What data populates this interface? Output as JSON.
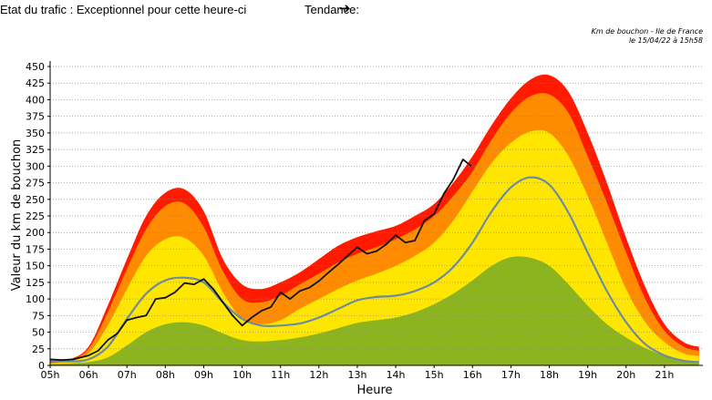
{
  "header": {
    "status_text": "Etat du trafic : Exceptionnel pour cette heure-ci",
    "trend_label": "Tendance:",
    "trend_arrow": "➔"
  },
  "caption": {
    "line1": "Km de bouchon - Ile de France",
    "line2": "le 15/04/22 à 15h58"
  },
  "colors": {
    "green": "#8cb41e",
    "yellow": "#ffe600",
    "orange": "#ff8c00",
    "red": "#ff1a00",
    "average_line": "#6e8ca0",
    "today_line": "#111111",
    "grid": "#888888"
  },
  "chart_data": {
    "type": "area",
    "xlabel": "Heure",
    "ylabel": "Valeur du  km de bouchon",
    "ylim": [
      0,
      450
    ],
    "xlim": [
      5,
      22
    ],
    "yticks": [
      0,
      25,
      50,
      75,
      100,
      125,
      150,
      175,
      200,
      225,
      250,
      275,
      300,
      325,
      350,
      375,
      400,
      425,
      450
    ],
    "xticks": [
      "05h",
      "06h",
      "07h",
      "08h",
      "09h",
      "10h",
      "11h",
      "12h",
      "13h",
      "14h",
      "15h",
      "16h",
      "17h",
      "18h",
      "19h",
      "20h",
      "21h"
    ],
    "grid": true,
    "x": [
      5,
      5.5,
      6,
      6.5,
      7,
      7.5,
      8,
      8.5,
      9,
      9.5,
      10,
      10.5,
      11,
      11.5,
      12,
      12.5,
      13,
      13.5,
      14,
      14.5,
      15,
      15.5,
      16,
      16.5,
      17,
      17.5,
      18,
      18.5,
      19,
      19.5,
      20,
      20.5,
      21,
      21.5,
      21.9
    ],
    "bands": [
      {
        "name": "green",
        "values": [
          2,
          3,
          5,
          12,
          30,
          50,
          62,
          65,
          60,
          48,
          38,
          36,
          38,
          42,
          48,
          56,
          64,
          68,
          72,
          80,
          92,
          108,
          128,
          150,
          163,
          162,
          150,
          122,
          90,
          62,
          42,
          26,
          15,
          8,
          5
        ]
      },
      {
        "name": "yellow",
        "values": [
          3,
          6,
          18,
          60,
          115,
          165,
          190,
          192,
          165,
          110,
          70,
          62,
          68,
          85,
          100,
          115,
          128,
          138,
          150,
          165,
          185,
          218,
          262,
          305,
          335,
          352,
          350,
          315,
          255,
          185,
          115,
          65,
          35,
          18,
          14
        ]
      },
      {
        "name": "orange",
        "values": [
          4,
          8,
          25,
          80,
          145,
          205,
          240,
          244,
          208,
          142,
          100,
          95,
          105,
          122,
          138,
          155,
          168,
          178,
          190,
          205,
          225,
          255,
          292,
          340,
          380,
          405,
          408,
          380,
          315,
          245,
          170,
          100,
          52,
          28,
          22
        ]
      },
      {
        "name": "red",
        "values": [
          5,
          9,
          28,
          90,
          160,
          225,
          260,
          265,
          232,
          160,
          122,
          115,
          125,
          140,
          160,
          180,
          193,
          202,
          210,
          225,
          243,
          275,
          315,
          362,
          402,
          430,
          437,
          412,
          350,
          275,
          192,
          118,
          62,
          35,
          28
        ]
      }
    ],
    "series": [
      {
        "name": "average",
        "x": [
          5,
          5.5,
          6,
          6.5,
          7,
          7.5,
          8,
          8.5,
          9,
          9.5,
          10,
          10.5,
          11,
          11.5,
          12,
          12.5,
          13,
          13.5,
          14,
          14.5,
          15,
          15.5,
          16,
          16.5,
          17,
          17.5,
          18,
          18.5,
          19,
          19.5,
          20,
          20.5,
          21,
          21.5,
          21.9
        ],
        "values": [
          7,
          6,
          9,
          28,
          70,
          108,
          128,
          132,
          125,
          95,
          70,
          60,
          60,
          63,
          72,
          85,
          98,
          103,
          105,
          112,
          125,
          148,
          185,
          232,
          268,
          283,
          272,
          230,
          170,
          112,
          65,
          32,
          15,
          7,
          5
        ]
      },
      {
        "name": "today",
        "x": [
          5,
          5.3,
          5.6,
          6,
          6.25,
          6.5,
          6.75,
          7,
          7.25,
          7.5,
          7.75,
          8,
          8.25,
          8.5,
          8.75,
          9,
          9.25,
          9.5,
          9.75,
          10,
          10.25,
          10.5,
          10.75,
          11,
          11.25,
          11.5,
          11.75,
          12,
          12.25,
          12.5,
          12.75,
          13,
          13.25,
          13.5,
          13.75,
          14,
          14.25,
          14.5,
          14.75,
          15,
          15.25,
          15.5,
          15.75,
          15.97
        ],
        "values": [
          9,
          8,
          9,
          15,
          22,
          38,
          48,
          68,
          72,
          75,
          100,
          102,
          110,
          124,
          122,
          130,
          115,
          95,
          75,
          60,
          72,
          82,
          88,
          110,
          100,
          112,
          117,
          127,
          140,
          152,
          165,
          178,
          168,
          172,
          182,
          196,
          185,
          188,
          218,
          228,
          258,
          280,
          310,
          300
        ]
      }
    ]
  }
}
